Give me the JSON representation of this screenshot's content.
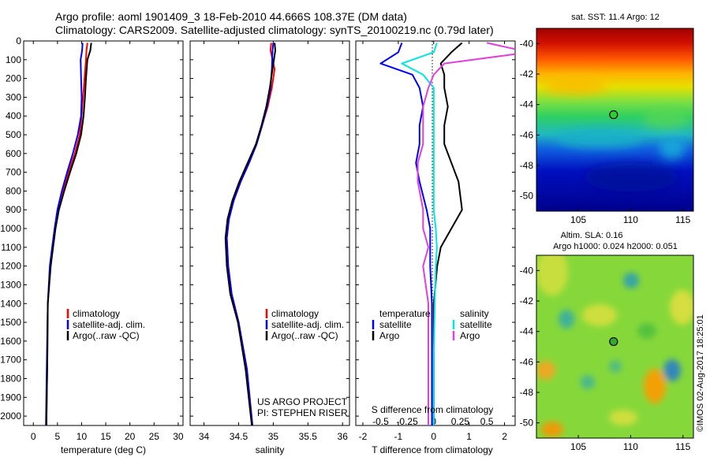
{
  "header": {
    "line1": "Argo profile: aoml 1901409_3 18-Feb-2010 44.666S 108.37E (DM data)",
    "line2": "Climatology: CARS2009. Satellite-adjusted climatology: synTS_20100219.nc (0.79d later)"
  },
  "colors": {
    "climatology": "#ff0000",
    "satellite": "#0000ff",
    "argo": "#000000",
    "salinity_satellite": "#00e5e5",
    "salinity_argo": "#e040e0"
  },
  "chart_data": [
    {
      "id": "temperature",
      "type": "line",
      "xlabel": "temperature (deg C)",
      "ylabel": "",
      "xlim": [
        -2,
        31
      ],
      "ylim": [
        2050,
        0
      ],
      "xticks": [
        0,
        5,
        10,
        15,
        20,
        25,
        30
      ],
      "xtick_labels": [
        "0",
        "5",
        "10",
        "15",
        "20",
        "25",
        "30"
      ],
      "yticks": [
        0,
        100,
        200,
        300,
        400,
        500,
        600,
        700,
        800,
        900,
        1000,
        1100,
        1200,
        1300,
        1400,
        1500,
        1600,
        1700,
        1800,
        1900,
        2000
      ],
      "ytick_labels": [
        "0",
        "100",
        "200",
        "300",
        "400",
        "500",
        "600",
        "700",
        "800",
        "900",
        "1000",
        "1100",
        "1200",
        "1300",
        "1400",
        "1500",
        "1600",
        "1700",
        "1800",
        "1900",
        "2000"
      ],
      "legend": [
        "climatology",
        "satellite-adj. clim.",
        "Argo(..raw -QC)"
      ],
      "legend_colors": [
        "#ff0000",
        "#0000ff",
        "#000000"
      ],
      "series": [
        {
          "name": "climatology",
          "color": "#ff0000",
          "x": [
            11.2,
            11.0,
            10.9,
            10.6,
            10.3,
            10.0,
            9.6,
            8.6,
            7.3,
            6.2,
            5.2,
            4.5,
            4.0,
            3.5,
            3.0,
            2.9,
            2.7
          ],
          "y": [
            10,
            50,
            100,
            200,
            300,
            400,
            500,
            600,
            700,
            800,
            900,
            1000,
            1100,
            1200,
            1400,
            1700,
            2050
          ]
        },
        {
          "name": "satellite-adj. clim.",
          "color": "#0000ff",
          "x": [
            10.2,
            10.1,
            9.8,
            9.9,
            10.0,
            9.9,
            9.2,
            8.2,
            7.0,
            5.9,
            5.0,
            4.4,
            3.9,
            3.4,
            3.0,
            2.8,
            2.6
          ],
          "y": [
            10,
            50,
            100,
            200,
            300,
            400,
            500,
            600,
            700,
            800,
            900,
            1000,
            1100,
            1200,
            1400,
            1700,
            2050
          ]
        },
        {
          "name": "Argo(..raw -QC)",
          "color": "#000000",
          "x": [
            12.0,
            11.8,
            11.2,
            10.9,
            10.7,
            10.4,
            9.9,
            8.9,
            7.6,
            6.4,
            5.3,
            4.6,
            4.1,
            3.6,
            3.0,
            2.9,
            2.7
          ],
          "y": [
            10,
            50,
            100,
            200,
            300,
            400,
            500,
            600,
            700,
            800,
            900,
            1000,
            1100,
            1200,
            1400,
            1700,
            2050
          ]
        }
      ]
    },
    {
      "id": "salinity",
      "type": "line",
      "xlabel": "salinity",
      "xlim": [
        33.8,
        36.1
      ],
      "ylim": [
        2050,
        0
      ],
      "xticks": [
        34,
        34.5,
        35,
        35.5,
        36
      ],
      "xtick_labels": [
        "34",
        "34.5",
        "35",
        "35.5",
        "36"
      ],
      "legend": [
        "climatology",
        "satellite-adj. clim.",
        "Argo(..raw -QC)"
      ],
      "legend_colors": [
        "#ff0000",
        "#0000ff",
        "#000000"
      ],
      "annotation": [
        "US ARGO PROJECT",
        "PI: STEPHEN RISER"
      ],
      "series": [
        {
          "name": "climatology",
          "color": "#ff0000",
          "x": [
            34.97,
            34.96,
            35.02,
            34.98,
            34.92,
            34.84,
            34.76,
            34.65,
            34.53,
            34.43,
            34.36,
            34.33,
            34.35,
            34.4,
            34.5,
            34.62,
            34.7
          ],
          "y": [
            10,
            50,
            150,
            250,
            350,
            450,
            550,
            650,
            750,
            850,
            950,
            1050,
            1200,
            1350,
            1500,
            1750,
            2050
          ]
        },
        {
          "name": "satellite-adj. clim.",
          "color": "#0000ff",
          "x": [
            35.0,
            34.99,
            34.98,
            34.96,
            34.91,
            34.84,
            34.76,
            34.65,
            34.53,
            34.43,
            34.36,
            34.33,
            34.35,
            34.4,
            34.5,
            34.62,
            34.7
          ],
          "y": [
            10,
            50,
            150,
            250,
            350,
            450,
            550,
            650,
            750,
            850,
            950,
            1050,
            1200,
            1350,
            1500,
            1750,
            2050
          ]
        },
        {
          "name": "Argo(..raw -QC)",
          "color": "#000000",
          "x": [
            35.02,
            35.03,
            34.99,
            34.95,
            34.9,
            34.83,
            34.75,
            34.63,
            34.51,
            34.41,
            34.34,
            34.31,
            34.33,
            34.38,
            34.49,
            34.6,
            34.69
          ],
          "y": [
            10,
            50,
            150,
            250,
            350,
            450,
            550,
            650,
            750,
            850,
            950,
            1050,
            1200,
            1350,
            1500,
            1750,
            2050
          ]
        }
      ]
    },
    {
      "id": "differences",
      "type": "line",
      "xlabel": "T difference from climatology",
      "xlabel2": "S difference from climatology",
      "xlim": [
        -2.2,
        2.3
      ],
      "ylim": [
        2050,
        0
      ],
      "xticks": [
        -2,
        -1,
        0,
        1,
        2
      ],
      "xtick_labels": [
        "-2",
        "-1",
        "0",
        "1",
        "2"
      ],
      "xticks2": [
        -0.5,
        -0.25,
        0,
        0.25,
        0.5
      ],
      "xtick2_labels": [
        "-0.5",
        "-0.25",
        "0",
        "0.25",
        "0.5"
      ],
      "legend_temperature": {
        "heading": "temperature",
        "items": [
          "satellite",
          "Argo"
        ],
        "colors": [
          "#0000ff",
          "#000000"
        ]
      },
      "legend_salinity": {
        "heading": "salinity",
        "items": [
          "satellite",
          "Argo"
        ],
        "colors": [
          "#00e5e5",
          "#e040e0"
        ]
      },
      "series": [
        {
          "name": "temperature satellite",
          "color": "#0000ff",
          "x": [
            -0.9,
            -1.0,
            -1.5,
            -0.6,
            -0.4,
            -0.3,
            -0.4,
            -0.4,
            -0.5,
            -0.4,
            -0.2,
            -0.1,
            -0.1,
            -0.1,
            -0.05,
            -0.05,
            -0.05
          ],
          "y": [
            10,
            60,
            120,
            180,
            250,
            350,
            450,
            550,
            650,
            750,
            900,
            1000,
            1100,
            1200,
            1400,
            1700,
            2050
          ]
        },
        {
          "name": "temperature Argo",
          "color": "#000000",
          "x": [
            0.8,
            0.5,
            0.2,
            0.3,
            0.3,
            0.4,
            0.3,
            0.3,
            0.5,
            0.7,
            0.8,
            0.5,
            0.2,
            0.1,
            0.0,
            0.0,
            0.0
          ],
          "y": [
            10,
            60,
            120,
            180,
            250,
            350,
            450,
            550,
            650,
            750,
            900,
            1000,
            1100,
            1200,
            1400,
            1700,
            2050
          ]
        },
        {
          "name": "salinity satellite",
          "color": "#00e5e5",
          "x": [
            0.03,
            0.0,
            -0.3,
            -0.1,
            0.0,
            0.0,
            0.0,
            0.0,
            0.0,
            0.0,
            0.0,
            0.02,
            0.03,
            0.02,
            0.01,
            0.0,
            0.0
          ],
          "y": [
            10,
            60,
            120,
            180,
            250,
            350,
            450,
            550,
            650,
            750,
            900,
            1000,
            1100,
            1200,
            1400,
            1700,
            2050
          ]
        },
        {
          "name": "salinity Argo",
          "color": "#e040e0",
          "x": [
            0.5,
            0.9,
            0.1,
            0.0,
            -0.05,
            -0.1,
            -0.1,
            -0.1,
            -0.15,
            -0.15,
            -0.1,
            -0.1,
            -0.05,
            -0.1,
            -0.05,
            -0.05,
            -0.05
          ],
          "y": [
            10,
            60,
            120,
            180,
            250,
            350,
            450,
            550,
            650,
            750,
            900,
            1000,
            1100,
            1200,
            1400,
            1700,
            2050
          ]
        }
      ]
    },
    {
      "id": "sst_map",
      "type": "heatmap",
      "title": "sat. SST: 11.4  Argo: 12",
      "xlim": [
        101,
        116
      ],
      "ylim": [
        -51,
        -39
      ],
      "xticks": [
        105,
        110,
        115
      ],
      "xtick_labels": [
        "105",
        "110",
        "115"
      ],
      "yticks": [
        -40,
        -42,
        -44,
        -46,
        -48,
        -50
      ],
      "ytick_labels": [
        "-40",
        "-42",
        "-44",
        "-46",
        "-48",
        "-50"
      ],
      "marker": {
        "lon": 108.37,
        "lat": -44.666
      }
    },
    {
      "id": "sla_map",
      "type": "heatmap",
      "title": "Altim. SLA: 0.16",
      "subtitle": "Argo h1000: 0.024 h2000: 0.051",
      "xlim": [
        101,
        116
      ],
      "ylim": [
        -51,
        -39
      ],
      "xticks": [
        105,
        110,
        115
      ],
      "xtick_labels": [
        "105",
        "110",
        "115"
      ],
      "yticks": [
        -40,
        -42,
        -44,
        -46,
        -48,
        -50
      ],
      "ytick_labels": [
        "-40",
        "-42",
        "-44",
        "-46",
        "-48",
        "-50"
      ],
      "marker": {
        "lon": 108.37,
        "lat": -44.666
      }
    }
  ],
  "footer": {
    "credit": "©IMOS 02-Aug-2017 18:25:01"
  }
}
